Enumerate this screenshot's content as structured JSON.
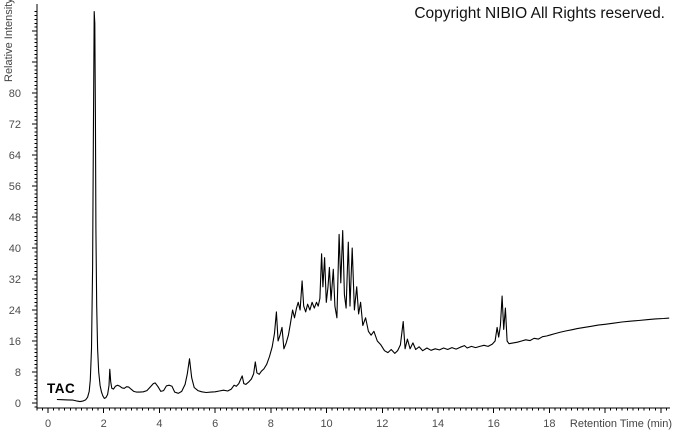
{
  "copyright_text": "Copyright NIBIO All Rights reserved.",
  "trace_label": "TAC",
  "chart_data": {
    "type": "line",
    "title": "",
    "xlabel": "Retention Time (min)",
    "ylabel": "Relative Intensity",
    "xlim": [
      -0.4,
      22.35
    ],
    "ylim": [
      -1.3,
      103
    ],
    "x_tick_labels": [
      "0",
      "2",
      "4",
      "6",
      "8",
      "10",
      "12",
      "14",
      "16",
      "18"
    ],
    "x_major_step": 2,
    "x_minor_step": 0.2,
    "y_tick_labels": [
      "0",
      "8",
      "16",
      "24",
      "32",
      "40",
      "48",
      "56",
      "64",
      "72",
      "80"
    ],
    "y_major_step": 8,
    "y_minor_step": 1,
    "grid": false,
    "legend_position": "none",
    "line_color": "#000000",
    "axis_color": "#000000",
    "tick_label_color": "#4d4d4d",
    "background": "#ffffff",
    "series": [
      {
        "name": "TAC",
        "points": [
          [
            0.32,
            0.9
          ],
          [
            0.5,
            0.85
          ],
          [
            0.7,
            0.8
          ],
          [
            0.9,
            0.75
          ],
          [
            1.05,
            0.5
          ],
          [
            1.15,
            0.35
          ],
          [
            1.25,
            0.5
          ],
          [
            1.35,
            0.8
          ],
          [
            1.42,
            1.5
          ],
          [
            1.48,
            3
          ],
          [
            1.52,
            6
          ],
          [
            1.56,
            14
          ],
          [
            1.6,
            35
          ],
          [
            1.63,
            70
          ],
          [
            1.66,
            101
          ],
          [
            1.68,
            98
          ],
          [
            1.7,
            75
          ],
          [
            1.72,
            45
          ],
          [
            1.75,
            25
          ],
          [
            1.78,
            14
          ],
          [
            1.82,
            8
          ],
          [
            1.87,
            4.5
          ],
          [
            1.92,
            2.8
          ],
          [
            1.97,
            1.8
          ],
          [
            2.02,
            1.2
          ],
          [
            2.08,
            1.4
          ],
          [
            2.14,
            2.2
          ],
          [
            2.19,
            4.5
          ],
          [
            2.22,
            8.7
          ],
          [
            2.25,
            5.5
          ],
          [
            2.29,
            3.8
          ],
          [
            2.35,
            3.6
          ],
          [
            2.42,
            4.3
          ],
          [
            2.5,
            4.6
          ],
          [
            2.58,
            4.3
          ],
          [
            2.66,
            3.9
          ],
          [
            2.74,
            3.8
          ],
          [
            2.82,
            4.2
          ],
          [
            2.9,
            4.1
          ],
          [
            2.98,
            3.6
          ],
          [
            3.08,
            3.0
          ],
          [
            3.18,
            2.8
          ],
          [
            3.3,
            2.8
          ],
          [
            3.42,
            2.9
          ],
          [
            3.55,
            3.2
          ],
          [
            3.68,
            4.2
          ],
          [
            3.78,
            5.0
          ],
          [
            3.85,
            5.2
          ],
          [
            3.95,
            4.2
          ],
          [
            4.05,
            3.0
          ],
          [
            4.15,
            3.2
          ],
          [
            4.25,
            4.4
          ],
          [
            4.35,
            4.6
          ],
          [
            4.45,
            4.3
          ],
          [
            4.55,
            2.8
          ],
          [
            4.68,
            2.5
          ],
          [
            4.8,
            3.0
          ],
          [
            4.92,
            4.8
          ],
          [
            5.0,
            7.5
          ],
          [
            5.08,
            11.4
          ],
          [
            5.16,
            6.5
          ],
          [
            5.25,
            4.0
          ],
          [
            5.38,
            3.2
          ],
          [
            5.52,
            2.9
          ],
          [
            5.68,
            2.7
          ],
          [
            5.85,
            2.8
          ],
          [
            6.0,
            2.9
          ],
          [
            6.15,
            3.1
          ],
          [
            6.3,
            3.3
          ],
          [
            6.45,
            3.1
          ],
          [
            6.58,
            3.6
          ],
          [
            6.68,
            4.6
          ],
          [
            6.76,
            4.3
          ],
          [
            6.85,
            5.0
          ],
          [
            6.92,
            6.2
          ],
          [
            6.97,
            7.0
          ],
          [
            7.03,
            5.0
          ],
          [
            7.1,
            4.8
          ],
          [
            7.2,
            5.4
          ],
          [
            7.3,
            6.2
          ],
          [
            7.38,
            7.5
          ],
          [
            7.44,
            10.6
          ],
          [
            7.5,
            7.8
          ],
          [
            7.58,
            7.4
          ],
          [
            7.66,
            8.2
          ],
          [
            7.75,
            8.8
          ],
          [
            7.85,
            10.0
          ],
          [
            7.95,
            12.0
          ],
          [
            8.05,
            14.5
          ],
          [
            8.13,
            18.0
          ],
          [
            8.2,
            23.5
          ],
          [
            8.26,
            16.0
          ],
          [
            8.33,
            17.5
          ],
          [
            8.4,
            19.5
          ],
          [
            8.47,
            14.0
          ],
          [
            8.55,
            15.5
          ],
          [
            8.63,
            17.5
          ],
          [
            8.7,
            20.5
          ],
          [
            8.78,
            24.0
          ],
          [
            8.85,
            22.0
          ],
          [
            8.92,
            24.5
          ],
          [
            8.98,
            26.0
          ],
          [
            9.05,
            24.0
          ],
          [
            9.12,
            31.5
          ],
          [
            9.18,
            25.0
          ],
          [
            9.25,
            23.5
          ],
          [
            9.32,
            25.5
          ],
          [
            9.4,
            24.0
          ],
          [
            9.48,
            26.0
          ],
          [
            9.56,
            24.5
          ],
          [
            9.64,
            26.0
          ],
          [
            9.7,
            25.0
          ],
          [
            9.76,
            27.0
          ],
          [
            9.82,
            38.5
          ],
          [
            9.87,
            30.0
          ],
          [
            9.93,
            37.5
          ],
          [
            9.99,
            26.0
          ],
          [
            10.05,
            30.0
          ],
          [
            10.1,
            35.0
          ],
          [
            10.16,
            26.5
          ],
          [
            10.24,
            34.5
          ],
          [
            10.3,
            25.0
          ],
          [
            10.37,
            22.0
          ],
          [
            10.45,
            43.5
          ],
          [
            10.51,
            31.0
          ],
          [
            10.58,
            44.5
          ],
          [
            10.64,
            28.0
          ],
          [
            10.7,
            24.5
          ],
          [
            10.78,
            41.5
          ],
          [
            10.84,
            25.0
          ],
          [
            10.92,
            40.0
          ],
          [
            11.0,
            24.0
          ],
          [
            11.08,
            30.0
          ],
          [
            11.15,
            23.0
          ],
          [
            11.22,
            26.0
          ],
          [
            11.3,
            20.0
          ],
          [
            11.4,
            22.0
          ],
          [
            11.5,
            18.5
          ],
          [
            11.6,
            17.5
          ],
          [
            11.7,
            18.5
          ],
          [
            11.82,
            16.0
          ],
          [
            11.95,
            15.0
          ],
          [
            12.08,
            13.5
          ],
          [
            12.2,
            13.0
          ],
          [
            12.32,
            13.8
          ],
          [
            12.45,
            12.8
          ],
          [
            12.55,
            13.5
          ],
          [
            12.65,
            15.0
          ],
          [
            12.75,
            21.0
          ],
          [
            12.82,
            14.0
          ],
          [
            12.9,
            16.5
          ],
          [
            13.0,
            14.0
          ],
          [
            13.1,
            15.5
          ],
          [
            13.2,
            13.8
          ],
          [
            13.32,
            14.5
          ],
          [
            13.45,
            13.5
          ],
          [
            13.6,
            14.2
          ],
          [
            13.75,
            13.6
          ],
          [
            13.9,
            14.0
          ],
          [
            14.05,
            13.7
          ],
          [
            14.2,
            14.2
          ],
          [
            14.35,
            13.8
          ],
          [
            14.5,
            14.3
          ],
          [
            14.65,
            13.9
          ],
          [
            14.8,
            14.4
          ],
          [
            14.95,
            14.8
          ],
          [
            15.05,
            14.2
          ],
          [
            15.2,
            14.6
          ],
          [
            15.35,
            14.3
          ],
          [
            15.5,
            14.6
          ],
          [
            15.65,
            14.9
          ],
          [
            15.8,
            14.6
          ],
          [
            15.95,
            15.2
          ],
          [
            16.05,
            16.0
          ],
          [
            16.12,
            19.5
          ],
          [
            16.18,
            17.0
          ],
          [
            16.24,
            20.0
          ],
          [
            16.3,
            27.6
          ],
          [
            16.36,
            19.0
          ],
          [
            16.42,
            24.5
          ],
          [
            16.48,
            16.0
          ],
          [
            16.55,
            15.3
          ],
          [
            16.7,
            15.5
          ],
          [
            16.85,
            15.7
          ],
          [
            17.0,
            16.0
          ],
          [
            17.15,
            16.3
          ],
          [
            17.3,
            16.1
          ],
          [
            17.45,
            16.7
          ],
          [
            17.6,
            16.5
          ],
          [
            17.75,
            17.1
          ],
          [
            17.9,
            17.3
          ],
          [
            18.05,
            17.6
          ],
          [
            18.2,
            17.9
          ],
          [
            18.4,
            18.3
          ],
          [
            18.6,
            18.6
          ],
          [
            18.8,
            18.9
          ],
          [
            19.0,
            19.2
          ],
          [
            19.25,
            19.5
          ],
          [
            19.5,
            19.8
          ],
          [
            19.75,
            20.1
          ],
          [
            20.0,
            20.3
          ],
          [
            20.3,
            20.6
          ],
          [
            20.6,
            20.9
          ],
          [
            20.9,
            21.1
          ],
          [
            21.2,
            21.3
          ],
          [
            21.5,
            21.5
          ],
          [
            21.8,
            21.7
          ],
          [
            22.1,
            21.8
          ],
          [
            22.3,
            21.9
          ]
        ]
      }
    ]
  }
}
